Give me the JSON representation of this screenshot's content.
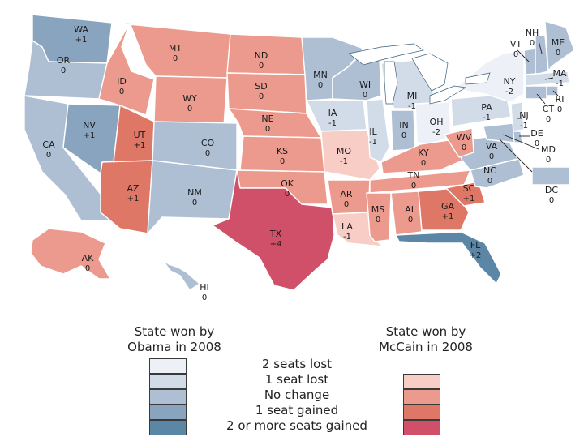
{
  "colors": {
    "obama": [
      "#edf1f7",
      "#d2dce8",
      "#aebfd3",
      "#89a4be",
      "#5b86a6"
    ],
    "mccain": [
      "#f7cdc6",
      "#ec9a8d",
      "#df7767",
      "#cf5068"
    ],
    "water": "#c8dceb",
    "lake": "#ffffff"
  },
  "states": [
    {
      "name": "WA",
      "change": "+1",
      "cat": "obama-gain1"
    },
    {
      "name": "OR",
      "change": "0",
      "cat": "obama-none"
    },
    {
      "name": "CA",
      "change": "0",
      "cat": "obama-none"
    },
    {
      "name": "NV",
      "change": "+1",
      "cat": "obama-gain1"
    },
    {
      "name": "ID",
      "change": "0",
      "cat": "mccain-none"
    },
    {
      "name": "MT",
      "change": "0",
      "cat": "mccain-none"
    },
    {
      "name": "WY",
      "change": "0",
      "cat": "mccain-none"
    },
    {
      "name": "UT",
      "change": "+1",
      "cat": "mccain-gain1"
    },
    {
      "name": "AZ",
      "change": "+1",
      "cat": "mccain-gain1"
    },
    {
      "name": "CO",
      "change": "0",
      "cat": "obama-none"
    },
    {
      "name": "NM",
      "change": "0",
      "cat": "obama-none"
    },
    {
      "name": "ND",
      "change": "0",
      "cat": "mccain-none"
    },
    {
      "name": "SD",
      "change": "0",
      "cat": "mccain-none"
    },
    {
      "name": "NE",
      "change": "0",
      "cat": "mccain-none"
    },
    {
      "name": "KS",
      "change": "0",
      "cat": "mccain-none"
    },
    {
      "name": "OK",
      "change": "0",
      "cat": "mccain-none"
    },
    {
      "name": "TX",
      "change": "+4",
      "cat": "mccain-gain2"
    },
    {
      "name": "MN",
      "change": "0",
      "cat": "obama-none"
    },
    {
      "name": "IA",
      "change": "-1",
      "cat": "obama-lost1"
    },
    {
      "name": "MO",
      "change": "-1",
      "cat": "mccain-lost1"
    },
    {
      "name": "AR",
      "change": "0",
      "cat": "mccain-none"
    },
    {
      "name": "LA",
      "change": "-1",
      "cat": "mccain-lost1"
    },
    {
      "name": "WI",
      "change": "0",
      "cat": "obama-none"
    },
    {
      "name": "IL",
      "change": "-1",
      "cat": "obama-lost1"
    },
    {
      "name": "MI",
      "change": "-1",
      "cat": "obama-lost1"
    },
    {
      "name": "IN",
      "change": "0",
      "cat": "obama-none"
    },
    {
      "name": "OH",
      "change": "-2",
      "cat": "obama-lost2"
    },
    {
      "name": "KY",
      "change": "0",
      "cat": "mccain-none"
    },
    {
      "name": "TN",
      "change": "0",
      "cat": "mccain-none"
    },
    {
      "name": "MS",
      "change": "0",
      "cat": "mccain-none"
    },
    {
      "name": "AL",
      "change": "0",
      "cat": "mccain-none"
    },
    {
      "name": "GA",
      "change": "+1",
      "cat": "mccain-gain1"
    },
    {
      "name": "FL",
      "change": "+2",
      "cat": "obama-gain2"
    },
    {
      "name": "SC",
      "change": "+1",
      "cat": "mccain-gain1"
    },
    {
      "name": "NC",
      "change": "0",
      "cat": "obama-none"
    },
    {
      "name": "VA",
      "change": "0",
      "cat": "obama-none"
    },
    {
      "name": "WV",
      "change": "0",
      "cat": "mccain-none"
    },
    {
      "name": "PA",
      "change": "-1",
      "cat": "obama-lost1"
    },
    {
      "name": "NY",
      "change": "-2",
      "cat": "obama-lost2"
    },
    {
      "name": "VT",
      "change": "0",
      "cat": "obama-none"
    },
    {
      "name": "NH",
      "change": "0",
      "cat": "obama-none"
    },
    {
      "name": "ME",
      "change": "0",
      "cat": "obama-none"
    },
    {
      "name": "MA",
      "change": "-1",
      "cat": "obama-lost1"
    },
    {
      "name": "RI",
      "change": "0",
      "cat": "obama-none"
    },
    {
      "name": "CT",
      "change": "0",
      "cat": "obama-none"
    },
    {
      "name": "NJ",
      "change": "-1",
      "cat": "obama-lost1"
    },
    {
      "name": "DE",
      "change": "0",
      "cat": "obama-none"
    },
    {
      "name": "MD",
      "change": "0",
      "cat": "obama-none"
    },
    {
      "name": "DC",
      "change": "0",
      "cat": "obama-none"
    },
    {
      "name": "AK",
      "change": "0",
      "cat": "mccain-none"
    },
    {
      "name": "HI",
      "change": "0",
      "cat": "obama-none"
    }
  ],
  "legend": {
    "obama_title_line1": "State won by",
    "obama_title_line2": "Obama in 2008",
    "mccain_title_line1": "State won by",
    "mccain_title_line2": "McCain in 2008",
    "rows": [
      "2 seats lost",
      "1 seat lost",
      "No change",
      "1 seat gained",
      "2 or more seats gained"
    ]
  }
}
